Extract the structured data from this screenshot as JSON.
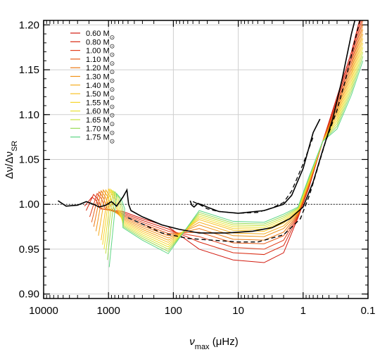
{
  "chart_data": {
    "type": "line",
    "x_scale": "log",
    "x_reversed": true,
    "xlim": [
      10000,
      0.1
    ],
    "ylim": [
      0.895,
      1.205
    ],
    "grid": true,
    "legend_placement": "top-left",
    "xlabel": {
      "symbol": "ν",
      "sub": "max",
      "unit": " (μHz)"
    },
    "ylabel": {
      "num": "Δν",
      "den": "Δν",
      "sub": "SR"
    },
    "x_ticks": [
      {
        "value": 10000,
        "label": "10000"
      },
      {
        "value": 1000,
        "label": "1000"
      },
      {
        "value": 100,
        "label": "100"
      },
      {
        "value": 10,
        "label": "10"
      },
      {
        "value": 1,
        "label": "1"
      },
      {
        "value": 0.1,
        "label": "0.1"
      }
    ],
    "y_ticks": [
      {
        "value": 0.9,
        "label": "0.90"
      },
      {
        "value": 0.95,
        "label": "0.95"
      },
      {
        "value": 1.0,
        "label": "1.00"
      },
      {
        "value": 1.05,
        "label": "1.05"
      },
      {
        "value": 1.1,
        "label": "1.10"
      },
      {
        "value": 1.15,
        "label": "1.15"
      },
      {
        "value": 1.2,
        "label": "1.20"
      }
    ],
    "reference_line": {
      "y": 1.0,
      "style": "dotted"
    },
    "series": [
      {
        "name": "0.60",
        "unit": "M",
        "sub": "⊙",
        "color": "#d21a0f",
        "yc": 0.938,
        "ymin": 0.935,
        "hump_x": 1800,
        "hump_y": 1.008,
        "drop_y": 0.998
      },
      {
        "name": "0.80",
        "unit": "M",
        "sub": "⊙",
        "color": "#d92910",
        "yc": 0.946,
        "ymin": 0.944,
        "hump_x": 1700,
        "hump_y": 1.011,
        "drop_y": 0.993
      },
      {
        "name": "1.00",
        "unit": "M",
        "sub": "⊙",
        "color": "#e23f1c",
        "yc": 0.952,
        "ymin": 0.95,
        "hump_x": 1500,
        "hump_y": 1.012,
        "drop_y": 0.986
      },
      {
        "name": "1.10",
        "unit": "M",
        "sub": "⊙",
        "color": "#e65a15",
        "yc": 0.957,
        "ymin": 0.956,
        "hump_x": 1400,
        "hump_y": 1.014,
        "drop_y": 0.98
      },
      {
        "name": "1.20",
        "unit": "M",
        "sub": "⊙",
        "color": "#eb7812",
        "yc": 0.961,
        "ymin": 0.96,
        "hump_x": 1300,
        "hump_y": 1.015,
        "drop_y": 0.975
      },
      {
        "name": "1.30",
        "unit": "M",
        "sub": "⊙",
        "color": "#f19214",
        "yc": 0.965,
        "ymin": 0.964,
        "hump_x": 1200,
        "hump_y": 1.016,
        "drop_y": 0.97
      },
      {
        "name": "1.40",
        "unit": "M",
        "sub": "⊙",
        "color": "#f5ab1c",
        "yc": 0.968,
        "ymin": 0.967,
        "hump_x": 1100,
        "hump_y": 1.016,
        "drop_y": 0.965
      },
      {
        "name": "1.50",
        "unit": "M",
        "sub": "⊙",
        "color": "#f9c224",
        "yc": 0.971,
        "ymin": 0.97,
        "hump_x": 1000,
        "hump_y": 1.017,
        "drop_y": 0.96
      },
      {
        "name": "1.55",
        "unit": "M",
        "sub": "⊙",
        "color": "#f7d52c",
        "yc": 0.973,
        "ymin": 0.972,
        "hump_x": 950,
        "hump_y": 1.017,
        "drop_y": 0.955
      },
      {
        "name": "1.60",
        "unit": "M",
        "sub": "⊙",
        "color": "#e9e232",
        "yc": 0.975,
        "ymin": 0.974,
        "hump_x": 900,
        "hump_y": 1.016,
        "drop_y": 0.95
      },
      {
        "name": "1.65",
        "unit": "M",
        "sub": "⊙",
        "color": "#c6e23c",
        "yc": 0.977,
        "ymin": 0.976,
        "hump_x": 850,
        "hump_y": 1.015,
        "drop_y": 0.945
      },
      {
        "name": "1.70",
        "unit": "M",
        "sub": "⊙",
        "color": "#98dc55",
        "yc": 0.979,
        "ymin": 0.978,
        "hump_x": 800,
        "hump_y": 1.014,
        "drop_y": 0.938
      },
      {
        "name": "1.75",
        "unit": "M",
        "sub": "⊙",
        "color": "#5ed685",
        "yc": 0.981,
        "ymin": 0.98,
        "hump_x": 750,
        "hump_y": 1.012,
        "drop_y": 0.93
      }
    ],
    "black_solid": [
      [
        6000,
        1.004
      ],
      [
        4500,
        0.998
      ],
      [
        3000,
        0.999
      ],
      [
        2200,
        1.003
      ],
      [
        1700,
        1.0
      ],
      [
        1400,
        0.997
      ],
      [
        1100,
        0.999
      ],
      [
        900,
        1.003
      ],
      [
        750,
        0.998
      ],
      [
        600,
        1.008
      ],
      [
        520,
        1.016
      ],
      [
        490,
        1.0
      ],
      [
        450,
        0.993
      ],
      [
        300,
        0.986
      ],
      [
        150,
        0.977
      ],
      [
        80,
        0.972
      ],
      [
        40,
        0.968
      ],
      [
        15,
        0.968
      ],
      [
        6,
        0.97
      ],
      [
        3,
        0.974
      ],
      [
        1.6,
        0.984
      ],
      [
        1.0,
        0.997
      ],
      [
        0.7,
        1.025
      ],
      [
        0.5,
        1.06
      ],
      [
        0.35,
        1.095
      ],
      [
        0.25,
        1.14
      ],
      [
        0.18,
        1.19
      ],
      [
        0.12,
        1.24
      ]
    ],
    "black_dashed": [
      [
        500,
        0.985
      ],
      [
        300,
        0.978
      ],
      [
        150,
        0.968
      ],
      [
        60,
        0.962
      ],
      [
        25,
        0.96
      ],
      [
        10,
        0.958
      ],
      [
        5,
        0.958
      ],
      [
        2,
        0.966
      ],
      [
        1.1,
        0.984
      ],
      [
        0.8,
        1.01
      ],
      [
        0.6,
        1.04
      ],
      [
        0.45,
        1.07
      ],
      [
        0.3,
        1.105
      ],
      [
        0.22,
        1.14
      ],
      [
        0.15,
        1.19
      ],
      [
        0.11,
        1.23
      ]
    ],
    "bump_black": [
      [
        55,
        1.004
      ],
      [
        52,
        0.999
      ],
      [
        48,
        0.997
      ],
      [
        42,
        1.001
      ],
      [
        35,
        0.999
      ],
      [
        28,
        0.996
      ],
      [
        20,
        0.992
      ],
      [
        10,
        0.99
      ],
      [
        4,
        0.993
      ],
      [
        2,
        1.0
      ],
      [
        1.5,
        1.01
      ],
      [
        1.0,
        1.04
      ],
      [
        0.7,
        1.08
      ],
      [
        0.55,
        1.095
      ]
    ],
    "bump_dashed": [
      [
        50,
        1.003
      ],
      [
        40,
        1.0
      ],
      [
        30,
        0.995
      ],
      [
        20,
        0.992
      ],
      [
        10,
        0.99
      ],
      [
        5,
        0.991
      ],
      [
        3,
        0.996
      ],
      [
        2,
        1.002
      ],
      [
        1.5,
        1.015
      ],
      [
        1.0,
        1.045
      ],
      [
        0.7,
        1.075
      ]
    ]
  }
}
